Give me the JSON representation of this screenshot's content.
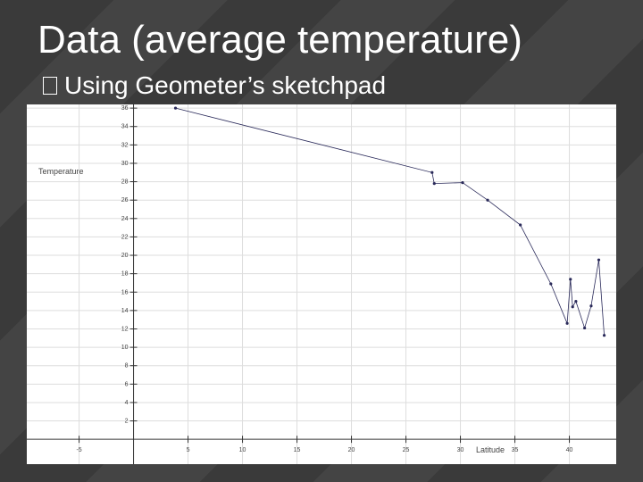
{
  "slide": {
    "title": "Data (average temperature)",
    "bullet": "Using Geometer’s sketchpad"
  },
  "chart_data": {
    "type": "line",
    "x_label": "Latitude",
    "y_label": "Temperature",
    "series": [
      {
        "name": "Temperature",
        "color": "#2a2a5a",
        "x": [
          3.85,
          27.4,
          27.6,
          30.2,
          32.5,
          35.5,
          38.3,
          39.8,
          40.1,
          40.3,
          40.6,
          41.4,
          42.0,
          42.7,
          43.2
        ],
        "values": [
          36.0,
          29.0,
          27.8,
          27.9,
          26.0,
          23.3,
          16.9,
          12.6,
          17.4,
          14.4,
          15.0,
          12.1,
          14.5,
          19.5,
          11.3
        ]
      }
    ],
    "xlim": [
      -9.8,
      44.3
    ],
    "ylim": [
      -2.7,
      36.4
    ],
    "xticks": [
      -5,
      5,
      10,
      15,
      20,
      25,
      30,
      35,
      40
    ],
    "yticks": [
      2,
      4,
      6,
      8,
      10,
      12,
      14,
      16,
      18,
      20,
      22,
      24,
      26,
      28,
      30,
      32,
      34,
      36
    ],
    "grid": true
  }
}
